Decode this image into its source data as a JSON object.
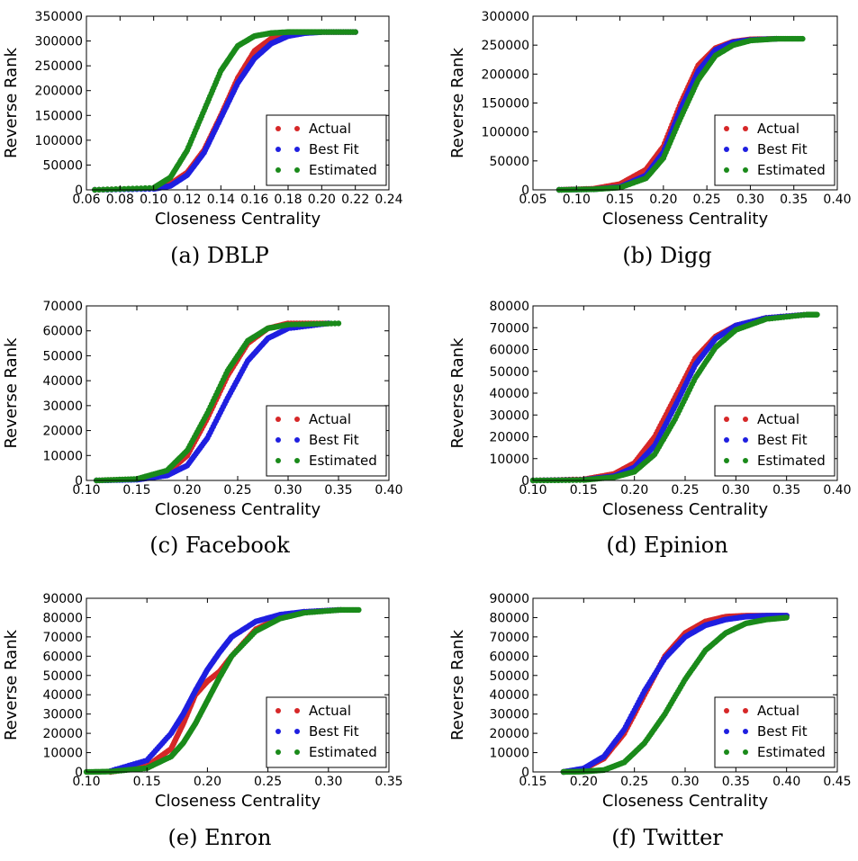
{
  "legend": [
    "Actual",
    "Best Fit",
    "Estimated"
  ],
  "colors": {
    "Actual": "#d62728",
    "Best Fit": "#1f1fe0",
    "Estimated": "#1a8a1a"
  },
  "chart_data": [
    {
      "type": "scatter",
      "caption": "(a) DBLP",
      "xlabel": "Closeness Centrality",
      "ylabel": "Reverse Rank",
      "xlim": [
        0.06,
        0.24
      ],
      "ylim": [
        0,
        350000
      ],
      "xticks": [
        "0.06",
        "0.08",
        "0.10",
        "0.12",
        "0.14",
        "0.16",
        "0.18",
        "0.20",
        "0.22",
        "0.24"
      ],
      "yticks": [
        "0",
        "50000",
        "100000",
        "150000",
        "200000",
        "250000",
        "300000",
        "350000"
      ],
      "legend_loc": "lower-right",
      "series": [
        {
          "name": "Actual",
          "x": [
            0.065,
            0.1,
            0.11,
            0.12,
            0.13,
            0.14,
            0.15,
            0.16,
            0.17,
            0.18,
            0.19,
            0.2,
            0.22
          ],
          "y": [
            0,
            3000,
            12000,
            35000,
            80000,
            150000,
            225000,
            280000,
            305000,
            314000,
            317000,
            318000,
            318000
          ]
        },
        {
          "name": "Best Fit",
          "x": [
            0.065,
            0.1,
            0.11,
            0.12,
            0.13,
            0.14,
            0.15,
            0.16,
            0.17,
            0.18,
            0.19,
            0.2,
            0.22
          ],
          "y": [
            0,
            2000,
            8000,
            30000,
            75000,
            145000,
            215000,
            265000,
            295000,
            310000,
            316000,
            318000,
            318000
          ]
        },
        {
          "name": "Estimated",
          "x": [
            0.065,
            0.1,
            0.11,
            0.12,
            0.13,
            0.14,
            0.15,
            0.16,
            0.17,
            0.18,
            0.19,
            0.2,
            0.22
          ],
          "y": [
            0,
            4000,
            25000,
            80000,
            160000,
            240000,
            290000,
            310000,
            316000,
            318000,
            318000,
            318000,
            318000
          ]
        }
      ]
    },
    {
      "type": "scatter",
      "caption": "(b) Digg",
      "xlabel": "Closeness Centrality",
      "ylabel": "Reverse Rank",
      "xlim": [
        0.05,
        0.4
      ],
      "ylim": [
        0,
        300000
      ],
      "xticks": [
        "0.05",
        "0.10",
        "0.15",
        "0.20",
        "0.25",
        "0.30",
        "0.35",
        "0.40"
      ],
      "yticks": [
        "0",
        "50000",
        "100000",
        "150000",
        "200000",
        "250000",
        "300000"
      ],
      "legend_loc": "lower-right",
      "series": [
        {
          "name": "Actual",
          "x": [
            0.08,
            0.12,
            0.15,
            0.18,
            0.2,
            0.22,
            0.24,
            0.26,
            0.28,
            0.3,
            0.33
          ],
          "y": [
            0,
            2000,
            10000,
            35000,
            75000,
            150000,
            215000,
            245000,
            256000,
            260000,
            261000
          ]
        },
        {
          "name": "Best Fit",
          "x": [
            0.08,
            0.12,
            0.15,
            0.18,
            0.2,
            0.22,
            0.24,
            0.26,
            0.28,
            0.3,
            0.33
          ],
          "y": [
            0,
            1000,
            5000,
            25000,
            65000,
            140000,
            205000,
            242000,
            255000,
            259000,
            261000
          ]
        },
        {
          "name": "Estimated",
          "x": [
            0.08,
            0.12,
            0.15,
            0.18,
            0.2,
            0.22,
            0.24,
            0.26,
            0.28,
            0.3,
            0.33,
            0.36
          ],
          "y": [
            0,
            1000,
            4000,
            20000,
            55000,
            125000,
            190000,
            232000,
            250000,
            258000,
            261000,
            261000
          ]
        }
      ]
    },
    {
      "type": "scatter",
      "caption": "(c) Facebook",
      "xlabel": "Closeness Centrality",
      "ylabel": "Reverse Rank",
      "xlim": [
        0.1,
        0.4
      ],
      "ylim": [
        0,
        70000
      ],
      "xticks": [
        "0.10",
        "0.15",
        "0.20",
        "0.25",
        "0.30",
        "0.35",
        "0.40"
      ],
      "yticks": [
        "0",
        "10000",
        "20000",
        "30000",
        "40000",
        "50000",
        "60000",
        "70000"
      ],
      "legend_loc": "lower-right",
      "series": [
        {
          "name": "Actual",
          "x": [
            0.11,
            0.15,
            0.18,
            0.2,
            0.22,
            0.24,
            0.26,
            0.28,
            0.3,
            0.34
          ],
          "y": [
            0,
            500,
            3000,
            10000,
            25000,
            42000,
            55000,
            61000,
            63000,
            63000
          ]
        },
        {
          "name": "Best Fit",
          "x": [
            0.11,
            0.15,
            0.18,
            0.2,
            0.22,
            0.24,
            0.26,
            0.28,
            0.3,
            0.34
          ],
          "y": [
            0,
            300,
            2000,
            6000,
            17000,
            33000,
            48000,
            57000,
            61000,
            63000
          ]
        },
        {
          "name": "Estimated",
          "x": [
            0.11,
            0.15,
            0.18,
            0.2,
            0.22,
            0.24,
            0.26,
            0.28,
            0.3,
            0.35
          ],
          "y": [
            0,
            600,
            4000,
            12000,
            27000,
            44000,
            56000,
            61000,
            62500,
            63000
          ]
        }
      ]
    },
    {
      "type": "scatter",
      "caption": "(d) Epinion",
      "xlabel": "Closeness Centrality",
      "ylabel": "Reverse Rank",
      "xlim": [
        0.1,
        0.4
      ],
      "ylim": [
        0,
        80000
      ],
      "xticks": [
        "0.10",
        "0.15",
        "0.20",
        "0.25",
        "0.30",
        "0.35",
        "0.40"
      ],
      "yticks": [
        "0",
        "10000",
        "20000",
        "30000",
        "40000",
        "50000",
        "60000",
        "70000",
        "80000"
      ],
      "legend_loc": "lower-right",
      "series": [
        {
          "name": "Actual",
          "x": [
            0.1,
            0.15,
            0.18,
            0.2,
            0.22,
            0.24,
            0.26,
            0.28,
            0.3,
            0.33,
            0.37
          ],
          "y": [
            0,
            500,
            3000,
            8000,
            20000,
            38000,
            56000,
            66000,
            71000,
            74500,
            76000
          ]
        },
        {
          "name": "Best Fit",
          "x": [
            0.1,
            0.15,
            0.18,
            0.2,
            0.22,
            0.24,
            0.26,
            0.28,
            0.3,
            0.33,
            0.37
          ],
          "y": [
            0,
            300,
            2000,
            6000,
            16000,
            34000,
            53000,
            65000,
            71000,
            74500,
            76000
          ]
        },
        {
          "name": "Estimated",
          "x": [
            0.1,
            0.15,
            0.18,
            0.2,
            0.22,
            0.24,
            0.26,
            0.28,
            0.3,
            0.33,
            0.37,
            0.38
          ],
          "y": [
            0,
            200,
            1500,
            4000,
            12000,
            28000,
            47000,
            61000,
            69000,
            74000,
            76000,
            76000
          ]
        }
      ]
    },
    {
      "type": "scatter",
      "caption": "(e) Enron",
      "xlabel": "Closeness Centrality",
      "ylabel": "Reverse Rank",
      "xlim": [
        0.1,
        0.35
      ],
      "ylim": [
        0,
        90000
      ],
      "xticks": [
        "0.10",
        "0.15",
        "0.20",
        "0.25",
        "0.30",
        "0.35"
      ],
      "yticks": [
        "0",
        "10000",
        "20000",
        "30000",
        "40000",
        "50000",
        "60000",
        "70000",
        "80000",
        "90000"
      ],
      "legend_loc": "lower-right",
      "series": [
        {
          "name": "Actual",
          "x": [
            0.12,
            0.15,
            0.17,
            0.18,
            0.19,
            0.2,
            0.21,
            0.22,
            0.24,
            0.26,
            0.28,
            0.31
          ],
          "y": [
            0,
            3000,
            12000,
            25000,
            40000,
            47000,
            52000,
            60000,
            74000,
            80000,
            83000,
            84000
          ]
        },
        {
          "name": "Best Fit",
          "x": [
            0.12,
            0.15,
            0.17,
            0.18,
            0.19,
            0.2,
            0.21,
            0.22,
            0.24,
            0.26,
            0.28,
            0.31
          ],
          "y": [
            500,
            6000,
            20000,
            30000,
            42000,
            53000,
            62000,
            70000,
            78000,
            81500,
            83000,
            84000
          ]
        },
        {
          "name": "Estimated",
          "x": [
            0.1,
            0.12,
            0.15,
            0.17,
            0.18,
            0.19,
            0.2,
            0.21,
            0.22,
            0.24,
            0.26,
            0.28,
            0.31,
            0.325
          ],
          "y": [
            0,
            200,
            2000,
            8000,
            15000,
            25000,
            37000,
            49000,
            60000,
            73000,
            79500,
            82500,
            84000,
            84000
          ]
        }
      ]
    },
    {
      "type": "scatter",
      "caption": "(f) Twitter",
      "xlabel": "Closeness Centrality",
      "ylabel": "Reverse Rank",
      "xlim": [
        0.15,
        0.45
      ],
      "ylim": [
        0,
        90000
      ],
      "xticks": [
        "0.15",
        "0.20",
        "0.25",
        "0.30",
        "0.35",
        "0.40",
        "0.45"
      ],
      "yticks": [
        "0",
        "10000",
        "20000",
        "30000",
        "40000",
        "50000",
        "60000",
        "70000",
        "80000",
        "90000"
      ],
      "legend_loc": "lower-right",
      "series": [
        {
          "name": "Actual",
          "x": [
            0.18,
            0.2,
            0.22,
            0.24,
            0.26,
            0.28,
            0.3,
            0.32,
            0.34,
            0.36,
            0.38,
            0.4
          ],
          "y": [
            0,
            1500,
            7000,
            20000,
            40000,
            60000,
            72000,
            78000,
            80500,
            81000,
            81000,
            81000
          ]
        },
        {
          "name": "Best Fit",
          "x": [
            0.18,
            0.2,
            0.22,
            0.24,
            0.26,
            0.28,
            0.3,
            0.32,
            0.34,
            0.36,
            0.38,
            0.4
          ],
          "y": [
            0,
            1800,
            8000,
            22000,
            42000,
            59000,
            70000,
            76000,
            79000,
            80500,
            81000,
            81000
          ]
        },
        {
          "name": "Estimated",
          "x": [
            0.18,
            0.2,
            0.22,
            0.24,
            0.26,
            0.28,
            0.3,
            0.32,
            0.34,
            0.36,
            0.38,
            0.4
          ],
          "y": [
            0,
            200,
            1000,
            5000,
            15000,
            30000,
            48000,
            63000,
            72000,
            77000,
            79000,
            80000
          ]
        }
      ]
    }
  ]
}
